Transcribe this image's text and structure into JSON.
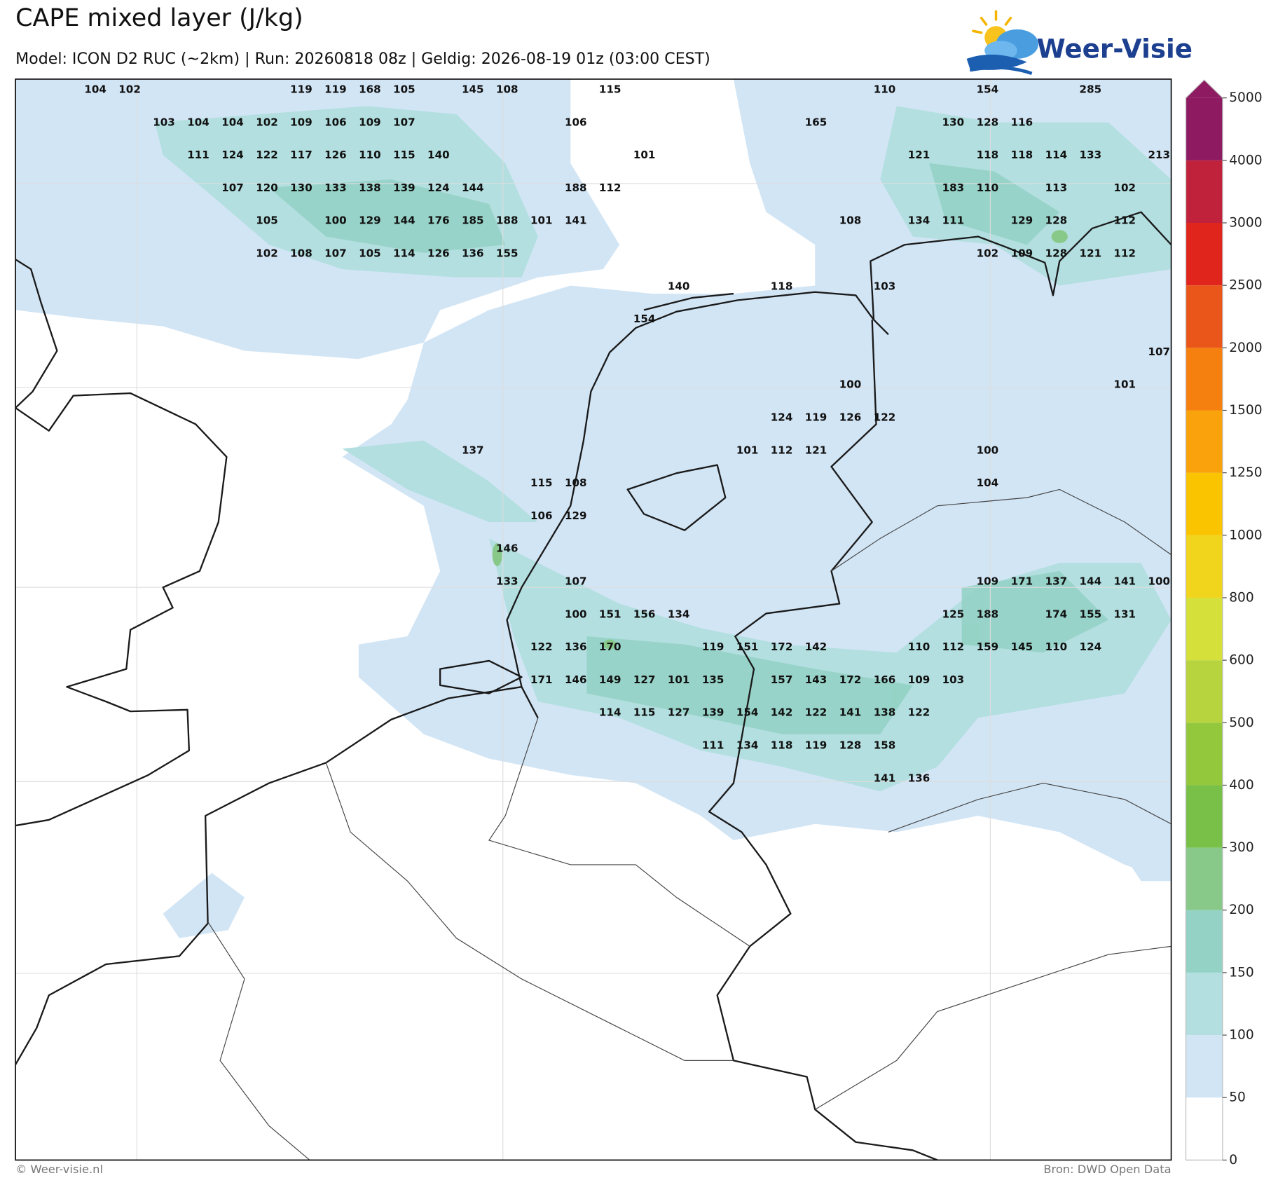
{
  "title": "CAPE mixed layer (J/kg)",
  "subtitle": "Model: ICON D2 RUC (~2km)  |  Run: 20260818 08z  |  Geldig: 2026-08-19 01z (03:00 CEST)",
  "logo": "Weer-Visie",
  "colorbar": {
    "ticks": [
      0,
      50,
      100,
      150,
      200,
      300,
      400,
      500,
      600,
      800,
      1000,
      1250,
      1500,
      2000,
      2500,
      3000,
      4000,
      5000
    ],
    "colors": [
      "#ffffff",
      "#d2e5f5",
      "#b3dfe0",
      "#93d2c5",
      "#88c98a",
      "#79c049",
      "#93c83d",
      "#b7d43e",
      "#d5e03a",
      "#f1d41c",
      "#fbc400",
      "#f9a20c",
      "#f5800f",
      "#ea561a",
      "#e0251c",
      "#c0213b",
      "#8e1a62"
    ]
  },
  "labels": [
    [
      104,
      102,
      null,
      null,
      null,
      null,
      119,
      119,
      168,
      105,
      null,
      145,
      108,
      null,
      null,
      115,
      null,
      null,
      null,
      null,
      null,
      null,
      null,
      110,
      null,
      null,
      154,
      null,
      null,
      285,
      null,
      null
    ],
    [
      null,
      null,
      103,
      104,
      104,
      102,
      109,
      106,
      109,
      107,
      null,
      null,
      null,
      null,
      106,
      null,
      null,
      null,
      null,
      null,
      null,
      165,
      null,
      null,
      null,
      130,
      128,
      116,
      null,
      null,
      null,
      null
    ],
    [
      null,
      null,
      null,
      111,
      124,
      122,
      117,
      126,
      110,
      115,
      140,
      null,
      null,
      null,
      null,
      null,
      101,
      null,
      null,
      null,
      null,
      null,
      null,
      null,
      121,
      null,
      118,
      118,
      114,
      133,
      null,
      213
    ],
    [
      null,
      null,
      null,
      null,
      107,
      120,
      130,
      133,
      138,
      139,
      124,
      144,
      null,
      null,
      188,
      112,
      null,
      null,
      null,
      null,
      null,
      null,
      null,
      null,
      null,
      183,
      110,
      null,
      113,
      null,
      102,
      null
    ],
    [
      null,
      null,
      null,
      null,
      null,
      105,
      null,
      100,
      129,
      144,
      176,
      185,
      188,
      101,
      141,
      null,
      null,
      null,
      null,
      null,
      null,
      null,
      108,
      null,
      134,
      111,
      null,
      129,
      128,
      null,
      112,
      null
    ],
    [
      null,
      null,
      null,
      null,
      null,
      102,
      108,
      107,
      105,
      114,
      126,
      136,
      155,
      null,
      null,
      null,
      null,
      null,
      null,
      null,
      null,
      null,
      null,
      null,
      null,
      null,
      102,
      109,
      128,
      121,
      112,
      null
    ],
    [
      null,
      null,
      null,
      null,
      null,
      null,
      null,
      null,
      null,
      null,
      null,
      null,
      null,
      null,
      null,
      null,
      null,
      140,
      null,
      null,
      118,
      null,
      null,
      103,
      null,
      null,
      null,
      null,
      null,
      null,
      null,
      null
    ],
    [
      null,
      null,
      null,
      null,
      null,
      null,
      null,
      null,
      null,
      null,
      null,
      null,
      null,
      null,
      null,
      null,
      154,
      null,
      null,
      null,
      null,
      null,
      null,
      null,
      null,
      null,
      null,
      null,
      null,
      null,
      null,
      null
    ],
    [
      null,
      null,
      null,
      null,
      null,
      null,
      null,
      null,
      null,
      null,
      null,
      null,
      null,
      null,
      null,
      null,
      null,
      null,
      null,
      null,
      null,
      null,
      null,
      null,
      null,
      null,
      null,
      null,
      null,
      null,
      null,
      107
    ],
    [
      null,
      null,
      null,
      null,
      null,
      null,
      null,
      null,
      null,
      null,
      null,
      null,
      null,
      null,
      null,
      null,
      null,
      null,
      null,
      null,
      null,
      null,
      100,
      null,
      null,
      null,
      null,
      null,
      null,
      null,
      101,
      null
    ],
    [
      null,
      null,
      null,
      null,
      null,
      null,
      null,
      null,
      null,
      null,
      null,
      null,
      null,
      null,
      null,
      null,
      null,
      null,
      null,
      null,
      124,
      119,
      126,
      122,
      null,
      null,
      null,
      null,
      null,
      null,
      null,
      null
    ],
    [
      null,
      null,
      null,
      null,
      null,
      null,
      null,
      null,
      null,
      null,
      null,
      137,
      null,
      null,
      null,
      null,
      null,
      null,
      null,
      101,
      112,
      121,
      null,
      null,
      null,
      null,
      100,
      null,
      null,
      null,
      null,
      null
    ],
    [
      null,
      null,
      null,
      null,
      null,
      null,
      null,
      null,
      null,
      null,
      null,
      null,
      null,
      115,
      108,
      null,
      null,
      null,
      null,
      null,
      null,
      null,
      null,
      null,
      null,
      null,
      104,
      null,
      null,
      null,
      null,
      null
    ],
    [
      null,
      null,
      null,
      null,
      null,
      null,
      null,
      null,
      null,
      null,
      null,
      null,
      null,
      106,
      129,
      null,
      null,
      null,
      null,
      null,
      null,
      null,
      null,
      null,
      null,
      null,
      null,
      null,
      null,
      null,
      null,
      null
    ],
    [
      null,
      null,
      null,
      null,
      null,
      null,
      null,
      null,
      null,
      null,
      null,
      null,
      146,
      null,
      null,
      null,
      null,
      null,
      null,
      null,
      null,
      null,
      null,
      null,
      null,
      null,
      null,
      null,
      null,
      null,
      null,
      null
    ],
    [
      null,
      null,
      null,
      null,
      null,
      null,
      null,
      null,
      null,
      null,
      null,
      null,
      133,
      null,
      107,
      null,
      null,
      null,
      null,
      null,
      null,
      null,
      null,
      null,
      null,
      null,
      109,
      171,
      137,
      144,
      141,
      100
    ],
    [
      null,
      null,
      null,
      null,
      null,
      null,
      null,
      null,
      null,
      null,
      null,
      null,
      null,
      null,
      100,
      151,
      156,
      134,
      null,
      null,
      null,
      null,
      null,
      null,
      null,
      125,
      188,
      null,
      174,
      155,
      131,
      null
    ],
    [
      null,
      null,
      null,
      null,
      null,
      null,
      null,
      null,
      null,
      null,
      null,
      null,
      null,
      122,
      136,
      170,
      null,
      null,
      119,
      151,
      172,
      142,
      null,
      null,
      110,
      112,
      159,
      145,
      110,
      124,
      null,
      null
    ],
    [
      null,
      null,
      null,
      null,
      null,
      null,
      null,
      null,
      null,
      null,
      null,
      null,
      null,
      171,
      146,
      149,
      127,
      101,
      135,
      null,
      157,
      143,
      172,
      166,
      109,
      103,
      null,
      null,
      null,
      null,
      null,
      null
    ],
    [
      null,
      null,
      null,
      null,
      null,
      null,
      null,
      null,
      null,
      null,
      null,
      null,
      null,
      null,
      null,
      114,
      115,
      127,
      139,
      154,
      142,
      122,
      141,
      138,
      122,
      null,
      null,
      null,
      null,
      null,
      null,
      null
    ],
    [
      null,
      null,
      null,
      null,
      null,
      null,
      null,
      null,
      null,
      null,
      null,
      null,
      null,
      null,
      null,
      null,
      null,
      null,
      111,
      134,
      118,
      119,
      128,
      158,
      null,
      null,
      null,
      null,
      null,
      null,
      null,
      null
    ],
    [
      null,
      null,
      null,
      null,
      null,
      null,
      null,
      null,
      null,
      null,
      null,
      null,
      null,
      null,
      null,
      null,
      null,
      null,
      null,
      null,
      null,
      null,
      null,
      141,
      136,
      null,
      null,
      null,
      null,
      null,
      null,
      null
    ]
  ],
  "footer": {
    "left": "© Weer-visie.nl",
    "right": "Bron: DWD Open Data"
  }
}
